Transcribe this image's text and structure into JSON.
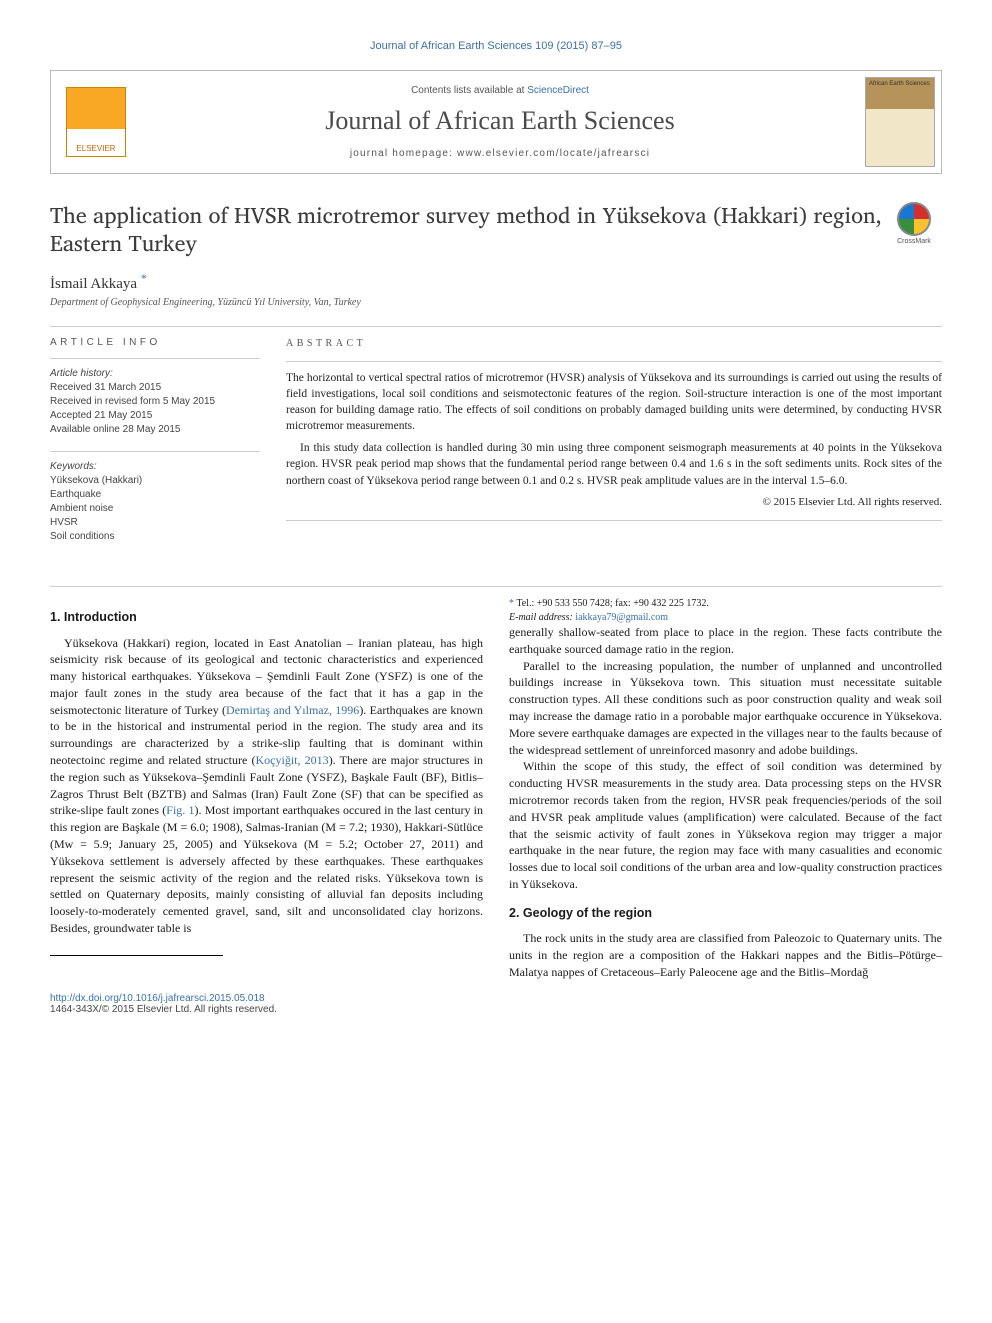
{
  "running_head": "Journal of African Earth Sciences 109 (2015) 87–95",
  "masthead": {
    "contents_prefix": "Contents lists available at ",
    "contents_link": "ScienceDirect",
    "journal_name": "Journal of African Earth Sciences",
    "homepage_label": "journal homepage: www.elsevier.com/locate/jafrearsci",
    "publisher_logo_label": "ELSEVIER",
    "cover_label": "African Earth Sciences"
  },
  "article": {
    "title": "The application of HVSR microtremor survey method in Yüksekova (Hakkari) region, Eastern Turkey",
    "crossmark_label": "CrossMark",
    "author": "İsmail Akkaya",
    "author_mark": "*",
    "affiliation": "Department of Geophysical Engineering, Yüzüncü Yıl University, Van, Turkey"
  },
  "info": {
    "head": "article info",
    "history_label": "Article history:",
    "history": [
      "Received 31 March 2015",
      "Received in revised form 5 May 2015",
      "Accepted 21 May 2015",
      "Available online 28 May 2015"
    ],
    "keywords_label": "Keywords:",
    "keywords": [
      "Yüksekova (Hakkari)",
      "Earthquake",
      "Ambient noise",
      "HVSR",
      "Soil conditions"
    ]
  },
  "abstract": {
    "head": "abstract",
    "p1": "The horizontal to vertical spectral ratios of microtremor (HVSR) analysis of Yüksekova and its surroundings is carried out using the results of field investigations, local soil conditions and seismotectonic features of the region. Soil-structure interaction is one of the most important reason for building damage ratio. The effects of soil conditions on probably damaged building units were determined, by conducting HVSR microtremor measurements.",
    "p2": "In this study data collection is handled during 30 min using three component seismograph measurements at 40 points in the Yüksekova region. HVSR peak period map shows that the fundamental period range between 0.4 and 1.6 s in the soft sediments units. Rock sites of the northern coast of Yüksekova period range between 0.1 and 0.2 s. HVSR peak amplitude values are in the interval 1.5–6.0.",
    "copyright": "© 2015 Elsevier Ltd. All rights reserved."
  },
  "body": {
    "sec1_title": "1. Introduction",
    "sec1_p1a": "Yüksekova (Hakkari) region, located in East Anatolian – Iranian plateau, has high seismicity risk because of its geological and tectonic characteristics and experienced many historical earthquakes. Yüksekova – Şemdinli Fault Zone (YSFZ) is one of the major fault zones in the study area because of the fact that it has a gap in the seismotectonic literature of Turkey (",
    "sec1_ref1": "Demirtaş and Yılmaz, 1996",
    "sec1_p1b": "). Earthquakes are known to be in the historical and instrumental period in the region. The study area and its surroundings are characterized by a strike-slip faulting that is dominant within neotectoinc regime and related structure (",
    "sec1_ref2": "Koçyiğit, 2013",
    "sec1_p1c": "). There are major structures in the region such as Yüksekova–Şemdinli Fault Zone (YSFZ), Başkale Fault (BF), Bitlis–Zagros Thrust Belt (BZTB) and Salmas (Iran) Fault Zone (SF) that can be specified as strike-slipe fault zones (",
    "sec1_ref3": "Fig. 1",
    "sec1_p1d": "). Most important earthquakes occured in the last century in this region are Başkale (M = 6.0; 1908), Salmas-Iranian (M = 7.2; 1930), Hakkari-Sütlüce (Mw = 5.9; January 25, 2005) and Yüksekova (M = 5.2; October 27, 2011) and Yüksekova settlement is adversely affected by these earthquakes. These earthquakes represent the seismic activity of the region and the related risks. Yüksekova town is settled on Quaternary deposits, mainly consisting of alluvial fan deposits including loosely-to-moderately cemented gravel, sand, silt and unconsolidated clay horizons. Besides, groundwater table is ",
    "sec1_p1e": "generally shallow-seated from place to place in the region. These facts contribute the earthquake sourced damage ratio in the region.",
    "sec1_p2": "Parallel to the increasing population, the number of unplanned and uncontrolled buildings increase in Yüksekova town. This situation must necessitate suitable construction types. All these conditions such as poor construction quality and weak soil may increase the damage ratio in a porobable major earthquake occurence in Yüksekova. More severe earthquake damages are expected in the villages near to the faults because of the widespread settlement of unreinforced masonry and adobe buildings.",
    "sec1_p3": "Within the scope of this study, the effect of soil condition was determined by conducting HVSR measurements in the study area. Data processing steps on the HVSR microtremor records taken from the region, HVSR peak frequencies/periods of the soil and HVSR peak amplitude values (amplification) were calculated. Because of the fact that the seismic activity of fault zones in Yüksekova region may trigger a major earthquake in the near future, the region may face with many casualities and economic losses due to local soil conditions of the urban area and low-quality construction practices in Yüksekova.",
    "sec2_title": "2. Geology of the region",
    "sec2_p1": "The rock units in the study area are classified from Paleozoic to Quaternary units. The units in the region are a composition of the Hakkari nappes and the Bitlis–Pötürge–Malatya nappes of Cretaceous–Early Paleocene age and the Bitlis–Mordağ"
  },
  "footnotes": {
    "corr": "Tel.: +90 533 550 7428; fax: +90 432 225 1732.",
    "email_label": "E-mail address:",
    "email": "iakkaya79@gmail.com"
  },
  "doi": "http://dx.doi.org/10.1016/j.jafrearsci.2015.05.018",
  "issn": "1464-343X/© 2015 Elsevier Ltd. All rights reserved.",
  "colors": {
    "link": "#3a6fb0",
    "text": "#1a1a1a"
  }
}
